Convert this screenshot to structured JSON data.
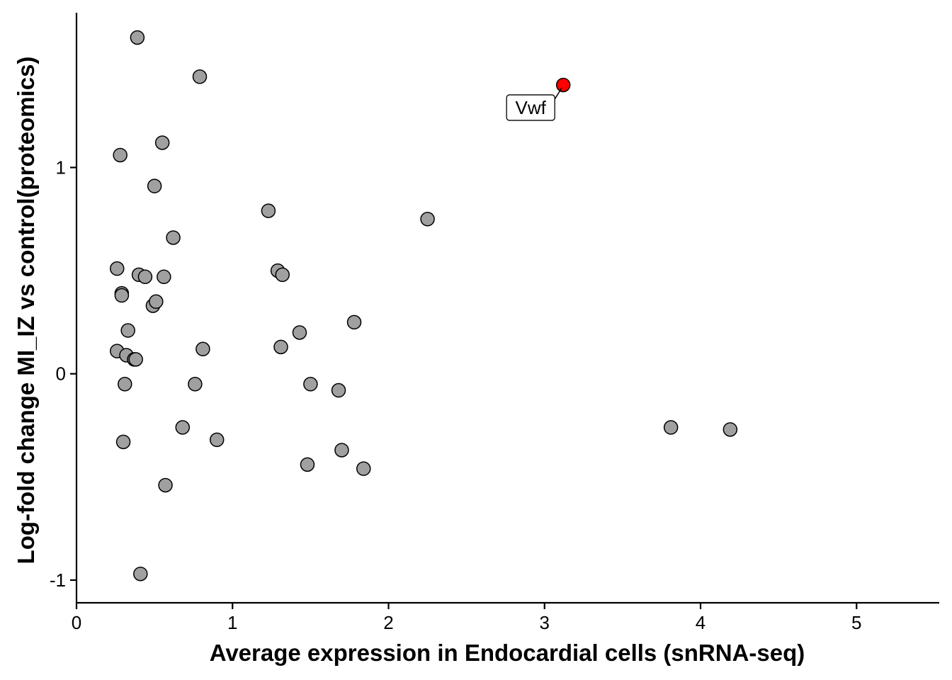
{
  "chart_data": {
    "type": "scatter",
    "xlabel": "Average expression in Endocardial cells (snRNA-seq)",
    "ylabel": "Log-fold change MI_IZ vs control(proteomics)",
    "xlim": [
      0,
      5.53
    ],
    "ylim": [
      -1.11,
      1.75
    ],
    "xticks": [
      0,
      1,
      2,
      3,
      4,
      5
    ],
    "yticks": [
      -1,
      0,
      1
    ],
    "grid": false,
    "colors": {
      "default": "#a0a0a0",
      "highlight": "#ff0000",
      "outline": "#000000"
    },
    "points": [
      {
        "x": 0.39,
        "y": 1.63
      },
      {
        "x": 0.79,
        "y": 1.44
      },
      {
        "x": 0.28,
        "y": 1.06
      },
      {
        "x": 0.55,
        "y": 1.12
      },
      {
        "x": 0.5,
        "y": 0.91
      },
      {
        "x": 1.23,
        "y": 0.79
      },
      {
        "x": 2.25,
        "y": 0.75
      },
      {
        "x": 0.62,
        "y": 0.66
      },
      {
        "x": 0.26,
        "y": 0.51
      },
      {
        "x": 0.4,
        "y": 0.48
      },
      {
        "x": 0.44,
        "y": 0.47
      },
      {
        "x": 0.56,
        "y": 0.47
      },
      {
        "x": 1.29,
        "y": 0.5
      },
      {
        "x": 1.32,
        "y": 0.48
      },
      {
        "x": 0.29,
        "y": 0.39
      },
      {
        "x": 0.29,
        "y": 0.38
      },
      {
        "x": 0.49,
        "y": 0.33
      },
      {
        "x": 0.51,
        "y": 0.35
      },
      {
        "x": 1.78,
        "y": 0.25
      },
      {
        "x": 0.33,
        "y": 0.21
      },
      {
        "x": 1.43,
        "y": 0.2
      },
      {
        "x": 0.26,
        "y": 0.11
      },
      {
        "x": 0.32,
        "y": 0.09
      },
      {
        "x": 0.37,
        "y": 0.07
      },
      {
        "x": 0.38,
        "y": 0.07
      },
      {
        "x": 0.81,
        "y": 0.12
      },
      {
        "x": 1.31,
        "y": 0.13
      },
      {
        "x": 0.31,
        "y": -0.05
      },
      {
        "x": 0.76,
        "y": -0.05
      },
      {
        "x": 1.5,
        "y": -0.05
      },
      {
        "x": 1.68,
        "y": -0.08
      },
      {
        "x": 0.68,
        "y": -0.26
      },
      {
        "x": 3.81,
        "y": -0.26
      },
      {
        "x": 4.19,
        "y": -0.27
      },
      {
        "x": 0.3,
        "y": -0.33
      },
      {
        "x": 0.9,
        "y": -0.32
      },
      {
        "x": 1.7,
        "y": -0.37
      },
      {
        "x": 1.48,
        "y": -0.44
      },
      {
        "x": 1.84,
        "y": -0.46
      },
      {
        "x": 0.57,
        "y": -0.54
      },
      {
        "x": 0.41,
        "y": -0.97
      },
      {
        "x": 3.12,
        "y": 1.4,
        "highlight": true,
        "label": "Vwf"
      }
    ]
  }
}
